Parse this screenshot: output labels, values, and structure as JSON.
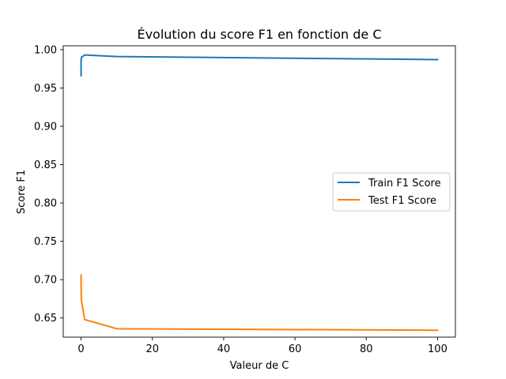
{
  "chart_data": {
    "type": "line",
    "title": "Évolution du score F1 en fonction de C",
    "xlabel": "Valeur de C",
    "ylabel": "Score F1",
    "xlim": [
      -5,
      105
    ],
    "ylim": [
      0.625,
      1.005
    ],
    "xticks": [
      0,
      20,
      40,
      60,
      80,
      100
    ],
    "xtick_labels": [
      "0",
      "20",
      "40",
      "60",
      "80",
      "100"
    ],
    "yticks": [
      0.65,
      0.7,
      0.75,
      0.8,
      0.85,
      0.9,
      0.95,
      1.0
    ],
    "ytick_labels": [
      "0.65",
      "0.70",
      "0.75",
      "0.80",
      "0.85",
      "0.90",
      "0.95",
      "1.00"
    ],
    "grid": false,
    "legend_position": "center-right",
    "series": [
      {
        "name": "Train F1 Score",
        "color": "#1f77b4",
        "x": [
          0.001,
          0.01,
          0.1,
          1,
          10,
          100
        ],
        "y": [
          0.966,
          0.986,
          0.99,
          0.993,
          0.991,
          0.987
        ]
      },
      {
        "name": "Test F1 Score",
        "color": "#ff7f0e",
        "x": [
          0.001,
          0.01,
          0.1,
          1,
          10,
          100
        ],
        "y": [
          0.706,
          0.69,
          0.673,
          0.648,
          0.636,
          0.634
        ]
      }
    ]
  }
}
